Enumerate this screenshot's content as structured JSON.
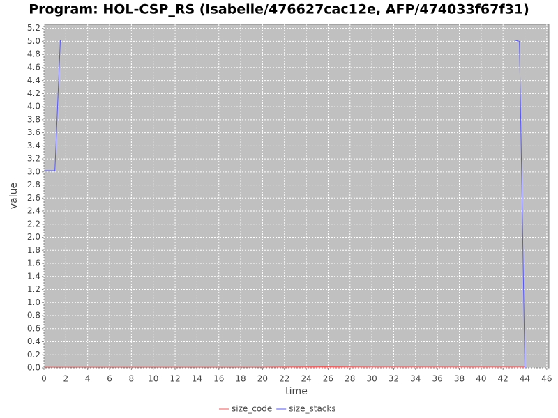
{
  "chart_data": {
    "type": "line",
    "title": "Program: HOL-CSP_RS (Isabelle/476627cac12e, AFP/474033f67f31)",
    "x_label": "time",
    "y_label": "value",
    "x": [
      0,
      1,
      1.5,
      10,
      20,
      30,
      40,
      43,
      43.5,
      44
    ],
    "series": [
      {
        "name": "size_code",
        "color": "#ff5555",
        "values": [
          0.01,
          0.01,
          0.01,
          0.01,
          0.01,
          0.02,
          0.02,
          0.02,
          0.02,
          0.02
        ]
      },
      {
        "name": "size_stacks",
        "color": "#5555ff",
        "values": [
          3.02,
          3.02,
          5.02,
          5.02,
          5.02,
          5.02,
          5.02,
          5.02,
          5.0,
          0
        ]
      }
    ],
    "xlim": [
      0,
      46.2
    ],
    "ylim": [
      0,
      5.26
    ],
    "xticks": [
      0,
      2,
      4,
      6,
      8,
      10,
      12,
      14,
      16,
      18,
      20,
      22,
      24,
      26,
      28,
      30,
      32,
      34,
      36,
      38,
      40,
      42,
      44,
      46
    ],
    "yticks": [
      {
        "value": 0,
        "label": "0.0"
      },
      {
        "value": 0.2,
        "label": "0.2"
      },
      {
        "value": 0.4,
        "label": "0.4"
      },
      {
        "value": 0.6,
        "label": "0.6"
      },
      {
        "value": 0.8,
        "label": "0.8"
      },
      {
        "value": 1,
        "label": "1.0"
      },
      {
        "value": 1.2,
        "label": "1.2"
      },
      {
        "value": 1.4,
        "label": "1.4"
      },
      {
        "value": 1.6,
        "label": "1.6"
      },
      {
        "value": 1.8,
        "label": "1.8"
      },
      {
        "value": 2,
        "label": "2.0"
      },
      {
        "value": 2.2,
        "label": "2.2"
      },
      {
        "value": 2.4,
        "label": "2.4"
      },
      {
        "value": 2.6,
        "label": "2.6"
      },
      {
        "value": 2.8,
        "label": "2.8"
      },
      {
        "value": 3,
        "label": "3.0"
      },
      {
        "value": 3.2,
        "label": "3.2"
      },
      {
        "value": 3.4,
        "label": "3.4"
      },
      {
        "value": 3.6,
        "label": "3.6"
      },
      {
        "value": 3.8,
        "label": "3.8"
      },
      {
        "value": 4,
        "label": "4.0"
      },
      {
        "value": 4.2,
        "label": "4.2"
      },
      {
        "value": 4.4,
        "label": "4.4"
      },
      {
        "value": 4.6,
        "label": "4.6"
      },
      {
        "value": 4.8,
        "label": "4.8"
      },
      {
        "value": 5,
        "label": "5.0"
      },
      {
        "value": 5.2,
        "label": "5.2"
      }
    ],
    "grid": true
  }
}
